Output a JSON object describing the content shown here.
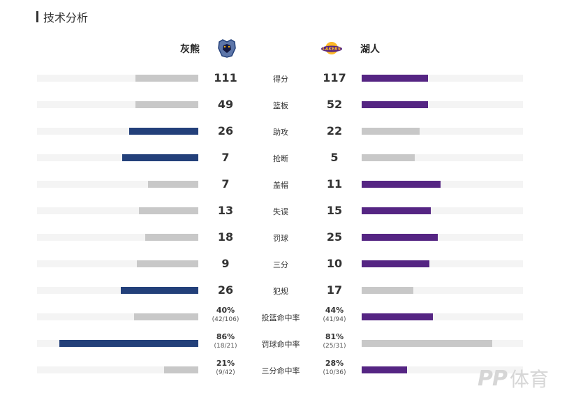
{
  "section": {
    "title": "技术分析"
  },
  "teams": {
    "home": {
      "name": "灰熊",
      "color": "#23407a",
      "logo_icon": "grizzlies-bear-logo-icon"
    },
    "away": {
      "name": "湖人",
      "color": "#552583",
      "logo_icon": "lakers-logo-icon"
    }
  },
  "colors": {
    "neutral_bar": "#c8c8c8",
    "track": "#f4f4f4"
  },
  "stats": [
    {
      "label": "得分",
      "home": "111",
      "away": "117",
      "home_fill": 0.39,
      "away_fill": 0.41,
      "leader": "away"
    },
    {
      "label": "篮板",
      "home": "49",
      "away": "52",
      "home_fill": 0.39,
      "away_fill": 0.41,
      "leader": "away"
    },
    {
      "label": "助攻",
      "home": "26",
      "away": "22",
      "home_fill": 0.43,
      "away_fill": 0.36,
      "leader": "home"
    },
    {
      "label": "抢断",
      "home": "7",
      "away": "5",
      "home_fill": 0.47,
      "away_fill": 0.33,
      "leader": "home"
    },
    {
      "label": "盖帽",
      "home": "7",
      "away": "11",
      "home_fill": 0.31,
      "away_fill": 0.49,
      "leader": "away"
    },
    {
      "label": "失误",
      "home": "13",
      "away": "15",
      "home_fill": 0.37,
      "away_fill": 0.43,
      "leader": "away"
    },
    {
      "label": "罚球",
      "home": "18",
      "away": "25",
      "home_fill": 0.33,
      "away_fill": 0.47,
      "leader": "away"
    },
    {
      "label": "三分",
      "home": "9",
      "away": "10",
      "home_fill": 0.38,
      "away_fill": 0.42,
      "leader": "away"
    },
    {
      "label": "犯规",
      "home": "26",
      "away": "17",
      "home_fill": 0.48,
      "away_fill": 0.32,
      "leader": "home"
    }
  ],
  "pct_stats": [
    {
      "label": "投篮命中率",
      "home": "40%",
      "home_sub": "(42/106)",
      "away": "44%",
      "away_sub": "(41/94)",
      "home_fill": 0.4,
      "away_fill": 0.44,
      "leader": "away"
    },
    {
      "label": "罚球命中率",
      "home": "86%",
      "home_sub": "(18/21)",
      "away": "81%",
      "away_sub": "(25/31)",
      "home_fill": 0.86,
      "away_fill": 0.81,
      "leader": "home"
    },
    {
      "label": "三分命中率",
      "home": "21%",
      "home_sub": "(9/42)",
      "away": "28%",
      "away_sub": "(10/36)",
      "home_fill": 0.21,
      "away_fill": 0.28,
      "leader": "away"
    }
  ],
  "watermark": {
    "pp": "PP",
    "text": "体育"
  }
}
